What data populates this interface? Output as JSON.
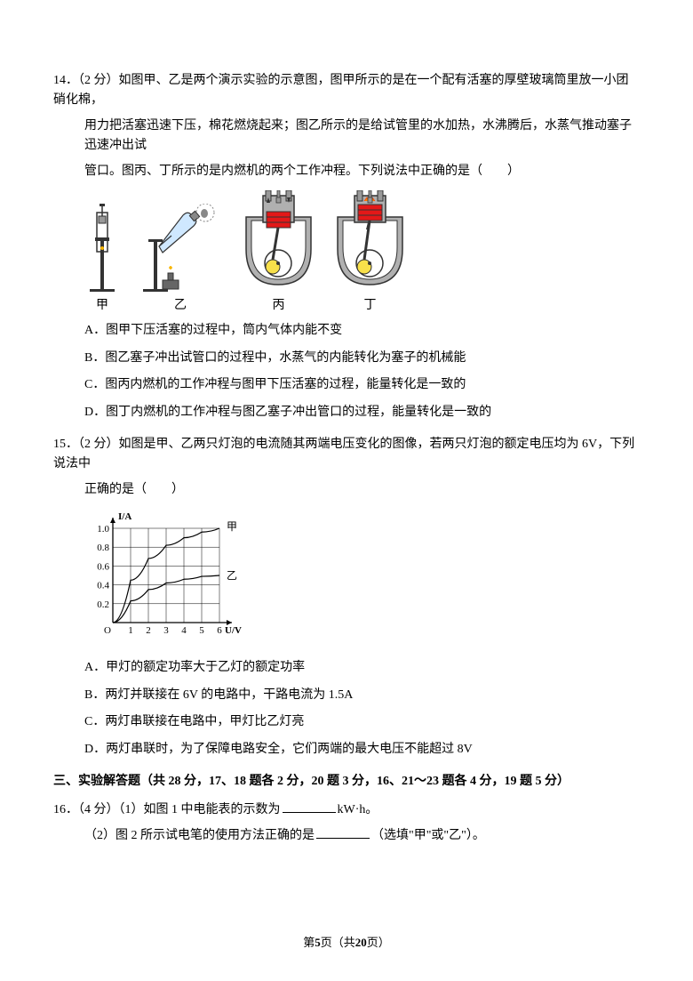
{
  "q14": {
    "number": "14．",
    "points": "（2 分）",
    "stem1": "如图甲、乙是两个演示实验的示意图，图甲所示的是在一个配有活塞的厚壁玻璃筒里放一小团硝化棉，",
    "stem2": "用力把活塞迅速下压，棉花燃烧起来；图乙所示的是给试管里的水加热，水沸腾后，水蒸气推动塞子迅速冲出试",
    "stem3": "管口。图丙、丁所示的是内燃机的两个工作冲程。下列说法中正确的是（　　）",
    "labels": {
      "a": "甲",
      "b": "乙",
      "c": "丙",
      "d": "丁"
    },
    "opts": {
      "A": "A．图甲下压活塞的过程中，筒内气体内能不变",
      "B": "B．图乙塞子冲出试管口的过程中，水蒸气的内能转化为塞子的机械能",
      "C": "C．图丙内燃机的工作冲程与图甲下压活塞的过程，能量转化是一致的",
      "D": "D．图丁内燃机的工作冲程与图乙塞子冲出管口的过程，能量转化是一致的"
    }
  },
  "q15": {
    "number": "15．",
    "points": "（2 分）",
    "stem1": "如图是甲、乙两只灯泡的电流随其两端电压变化的图像，若两只灯泡的额定电压均为 6V，下列说法中",
    "stem2": "正确的是（　　）",
    "chart": {
      "type": "line",
      "xLabel": "U/V",
      "yLabel": "I/A",
      "xlim": [
        0,
        6
      ],
      "ylim": [
        0,
        1.0
      ],
      "xticks": [
        1,
        2,
        3,
        4,
        5,
        6
      ],
      "yticks_labels": [
        "0.2",
        "0.4",
        "0.6",
        "0.8",
        "1.0"
      ],
      "yticks": [
        0.2,
        0.4,
        0.6,
        0.8,
        1.0
      ],
      "series": {
        "jia": {
          "label": "甲",
          "points": [
            [
              0,
              0
            ],
            [
              1,
              0.45
            ],
            [
              2,
              0.68
            ],
            [
              3,
              0.82
            ],
            [
              4,
              0.9
            ],
            [
              5,
              0.96
            ],
            [
              6,
              1.0
            ]
          ]
        },
        "yi": {
          "label": "乙",
          "points": [
            [
              0,
              0
            ],
            [
              1,
              0.23
            ],
            [
              2,
              0.35
            ],
            [
              3,
              0.42
            ],
            [
              4,
              0.46
            ],
            [
              5,
              0.49
            ],
            [
              6,
              0.5
            ]
          ]
        }
      },
      "grid_color": "#000000",
      "line_color": "#000000",
      "line_width": 1.2,
      "axis_fontsize": 11
    },
    "opts": {
      "A": "A．甲灯的额定功率大于乙灯的额定功率",
      "B": "B．两灯并联接在 6V 的电路中，干路电流为 1.5A",
      "C": "C．两灯串联接在电路中，甲灯比乙灯亮",
      "D": "D．两灯串联时，为了保障电路安全，它们两端的最大电压不能超过 8V"
    }
  },
  "section3": "三、实验解答题（共 28 分，17、18 题各 2 分，20 题 3 分，16、21～23 题各 4 分，19 题 5 分）",
  "q16": {
    "number": "16．",
    "points": "（4 分）",
    "p1a": "（1）如图 1 中电能表的示数为",
    "p1b": "kW·h。",
    "p2a": "（2）图 2 所示试电笔的使用方法正确的是",
    "p2b": "（选填\"甲\"或\"乙\"）。"
  },
  "figures": {
    "engine_colors": {
      "body": "#b0b0b0",
      "red": "#e31818",
      "yellow": "#f8e04a",
      "inner": "#ffffff",
      "stroke": "#333333"
    },
    "burner_flame": "#f8b500",
    "tube_water": "#cfe8ff",
    "piston_tube": "#dddddd"
  },
  "footer": {
    "prefix": "第",
    "num": "5",
    "mid": "页（共",
    "total": "20",
    "suffix": "页）"
  }
}
